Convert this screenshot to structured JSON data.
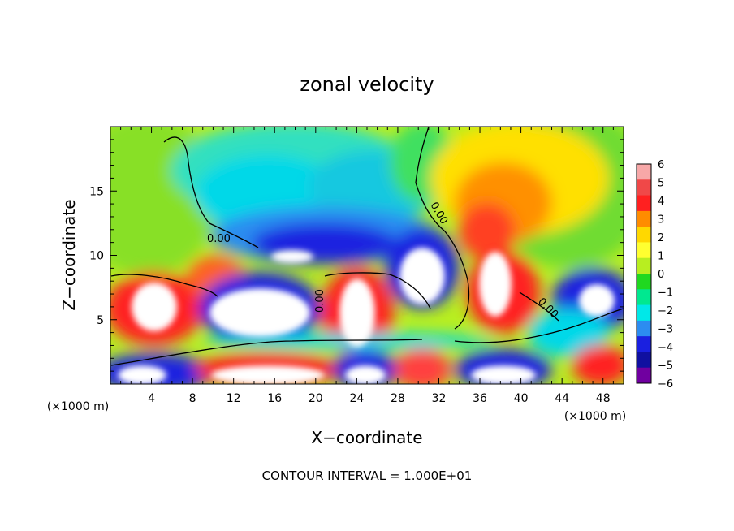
{
  "chart_data": {
    "type": "heatmap",
    "title": "zonal velocity",
    "xlabel": "X−coordinate",
    "ylabel": "Z−coordinate",
    "x_unit_left": "(×1000 m)",
    "x_unit_right": "(×1000 m)",
    "footer": "CONTOUR INTERVAL = 1.000E+01",
    "xlim": [
      0,
      50
    ],
    "ylim": [
      0,
      20
    ],
    "x_ticks": [
      4,
      8,
      12,
      16,
      20,
      24,
      28,
      32,
      36,
      40,
      44,
      48
    ],
    "y_ticks": [
      5,
      10,
      15
    ],
    "colorbar": {
      "ticks": [
        6,
        5,
        4,
        3,
        2,
        1,
        0,
        -1,
        -2,
        -3,
        -4,
        -5,
        -6
      ],
      "colors": [
        "#f7a8a8",
        "#f04848",
        "#ff2020",
        "#ff8c00",
        "#ffd800",
        "#ffff30",
        "#b8ee20",
        "#20d820",
        "#00e890",
        "#00e8e8",
        "#2c8cf0",
        "#1a20e0",
        "#1010a0",
        "#7000a0"
      ]
    },
    "contour_labels": [
      "0.00",
      "0.00",
      "0.00",
      "0.00"
    ],
    "saturated_regions": [
      {
        "sign": "positive",
        "x": 4.5,
        "z": 5.8
      },
      {
        "sign": "positive",
        "x": 24.5,
        "z": 5.5
      },
      {
        "sign": "positive",
        "x": 38,
        "z": 8.5
      },
      {
        "sign": "negative",
        "x": 16,
        "z": 6.5
      },
      {
        "sign": "negative",
        "x": 31,
        "z": 8.5
      },
      {
        "sign": "negative",
        "x": 47,
        "z": 6.5
      },
      {
        "sign": "negative",
        "x": 16,
        "z": 10
      },
      {
        "sign": "negative",
        "x": 4,
        "z": 1
      },
      {
        "sign": "positive",
        "x": 15,
        "z": 1
      },
      {
        "sign": "negative",
        "x": 24,
        "z": 1
      },
      {
        "sign": "negative",
        "x": 37,
        "z": 1
      }
    ]
  }
}
